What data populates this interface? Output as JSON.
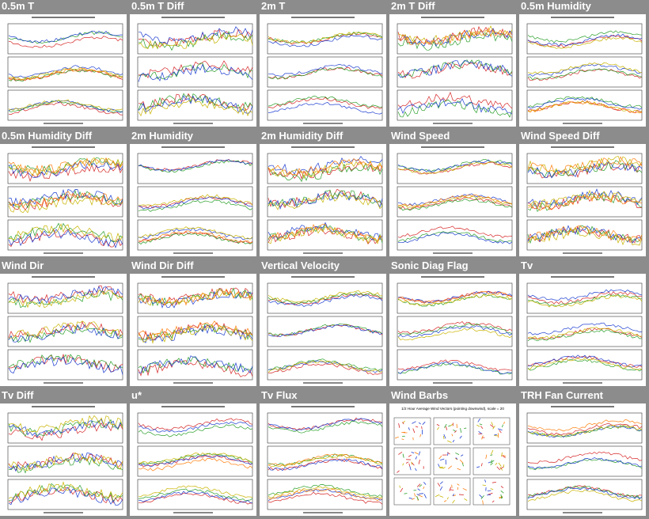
{
  "tiles": [
    {
      "id": "05m-t",
      "title": "0.5m T",
      "type": "lines"
    },
    {
      "id": "05m-t-diff",
      "title": "0.5m T Diff",
      "type": "lines"
    },
    {
      "id": "2m-t",
      "title": "2m T",
      "type": "lines"
    },
    {
      "id": "2m-t-diff",
      "title": "2m T Diff",
      "type": "lines"
    },
    {
      "id": "05m-humidity",
      "title": "0.5m Humidity",
      "type": "lines"
    },
    {
      "id": "05m-humidity-diff",
      "title": "0.5m Humidity Diff",
      "type": "lines"
    },
    {
      "id": "2m-humidity",
      "title": "2m Humidity",
      "type": "lines"
    },
    {
      "id": "2m-humidity-diff",
      "title": "2m Humidity Diff",
      "type": "lines"
    },
    {
      "id": "wind-speed",
      "title": "Wind Speed",
      "type": "lines"
    },
    {
      "id": "wind-speed-diff",
      "title": "Wind Speed Diff",
      "type": "lines"
    },
    {
      "id": "wind-dir",
      "title": "Wind Dir",
      "type": "lines"
    },
    {
      "id": "wind-dir-diff",
      "title": "Wind Dir Diff",
      "type": "lines"
    },
    {
      "id": "vertical-velocity",
      "title": "Vertical Velocity",
      "type": "lines"
    },
    {
      "id": "sonic-diag-flag",
      "title": "Sonic Diag Flag",
      "type": "lines"
    },
    {
      "id": "tv",
      "title": "Tv",
      "type": "lines"
    },
    {
      "id": "tv-diff",
      "title": "Tv Diff",
      "type": "lines"
    },
    {
      "id": "u-star",
      "title": "u*",
      "type": "lines"
    },
    {
      "id": "tv-flux",
      "title": "Tv Flux",
      "type": "lines"
    },
    {
      "id": "wind-barbs",
      "title": "Wind Barbs",
      "type": "barbs",
      "header": "1/2 Hour Average Wind Vectors (pointing downwind), scale = 20"
    },
    {
      "id": "trh-fan-current",
      "title": "TRH Fan Current",
      "type": "lines"
    }
  ],
  "colors": {
    "background": "#8c8c8c",
    "title": "#ffffff",
    "series": [
      "#d62728",
      "#2ca02c",
      "#1f3fd0",
      "#c8b400",
      "#ff7f0e",
      "#8c564b",
      "#9467bd",
      "#e377c2"
    ]
  }
}
